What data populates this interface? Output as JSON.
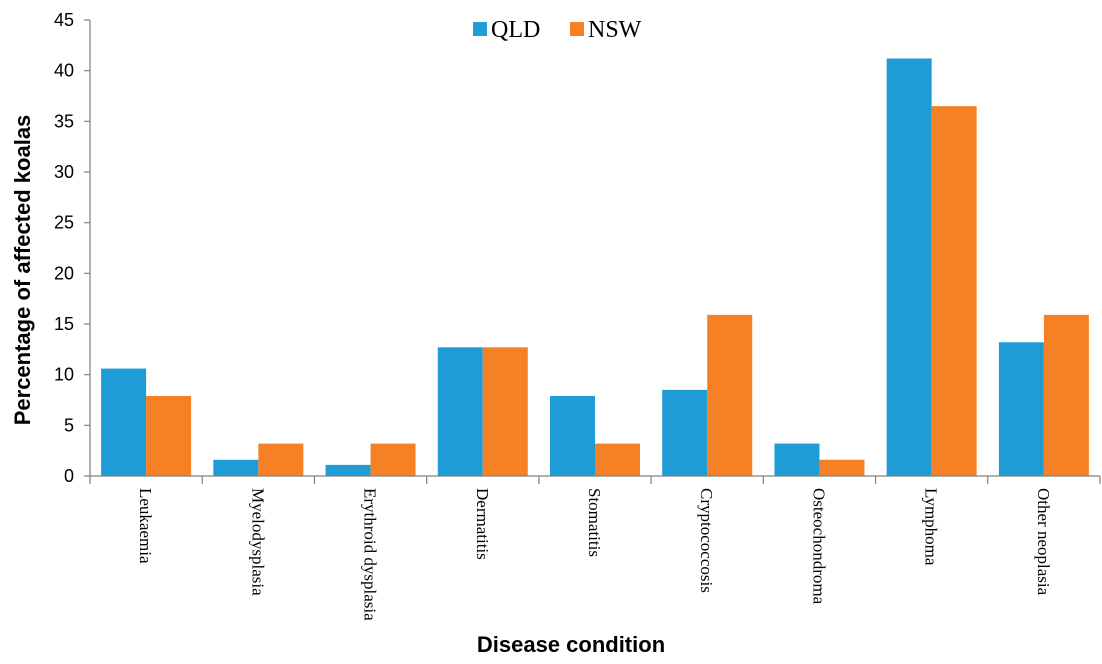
{
  "chart_data": {
    "type": "bar",
    "title": "",
    "xlabel": "Disease condition",
    "ylabel": "Percentage of affected koalas",
    "ylim": [
      0,
      45
    ],
    "yticks": [
      0,
      5,
      10,
      15,
      20,
      25,
      30,
      35,
      40,
      45
    ],
    "grid": false,
    "legend_position": "top-center",
    "categories": [
      "Leukaemia",
      "Myelodysplasia",
      "Erythroid dysplasia",
      "Dermatitis",
      "Stomatitis",
      "Cryptococcosis",
      "Osteochondroma",
      "Lymphoma",
      "Other neoplasia"
    ],
    "series": [
      {
        "name": "QLD",
        "color": "#1f9cd6",
        "values": [
          10.6,
          1.6,
          1.1,
          12.7,
          7.9,
          8.5,
          3.2,
          41.2,
          13.2
        ]
      },
      {
        "name": "NSW",
        "color": "#f68026",
        "values": [
          7.9,
          3.2,
          3.2,
          12.7,
          3.2,
          15.9,
          1.6,
          36.5,
          15.9
        ]
      }
    ]
  }
}
